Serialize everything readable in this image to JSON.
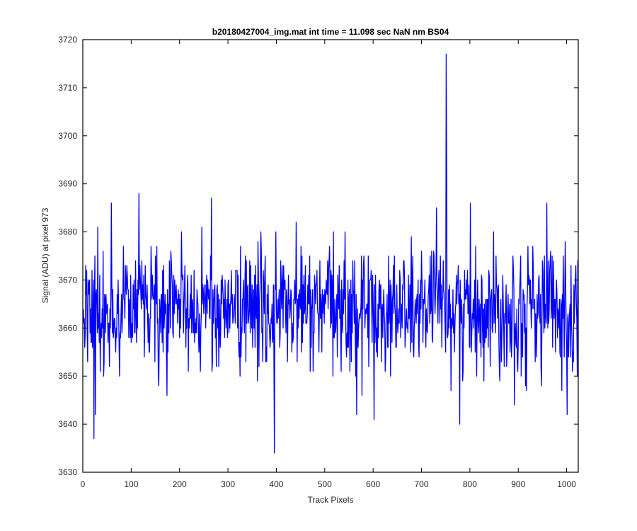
{
  "chart_data": {
    "type": "line",
    "title": "b20180427004_img.mat int time = 11.098 sec  NaN nm BS04",
    "xlabel": "Track Pixels",
    "ylabel": "Signal (ADU) at pixel 973",
    "xlim": [
      0,
      1024
    ],
    "ylim": [
      3630,
      3720
    ],
    "xticks": [
      0,
      100,
      200,
      300,
      400,
      500,
      600,
      700,
      800,
      900,
      1000
    ],
    "yticks": [
      3630,
      3640,
      3650,
      3660,
      3670,
      3680,
      3690,
      3700,
      3710,
      3720
    ],
    "grid": false,
    "line_color": "#0000ff",
    "series": [
      {
        "n_points": 1024,
        "baseline": 3664,
        "typical_range": [
          3646,
          3688
        ],
        "notable_points": [
          {
            "x": 22,
            "y": 3637
          },
          {
            "x": 25,
            "y": 3642
          },
          {
            "x": 30,
            "y": 3681
          },
          {
            "x": 58,
            "y": 3686
          },
          {
            "x": 115,
            "y": 3688
          },
          {
            "x": 173,
            "y": 3646
          },
          {
            "x": 265,
            "y": 3687
          },
          {
            "x": 395,
            "y": 3634
          },
          {
            "x": 440,
            "y": 3682
          },
          {
            "x": 565,
            "y": 3642
          },
          {
            "x": 601,
            "y": 3641
          },
          {
            "x": 750,
            "y": 3717
          },
          {
            "x": 751,
            "y": 3694
          },
          {
            "x": 778,
            "y": 3640
          },
          {
            "x": 891,
            "y": 3644
          },
          {
            "x": 958,
            "y": 3686
          },
          {
            "x": 1000,
            "y": 3642
          }
        ]
      }
    ]
  }
}
